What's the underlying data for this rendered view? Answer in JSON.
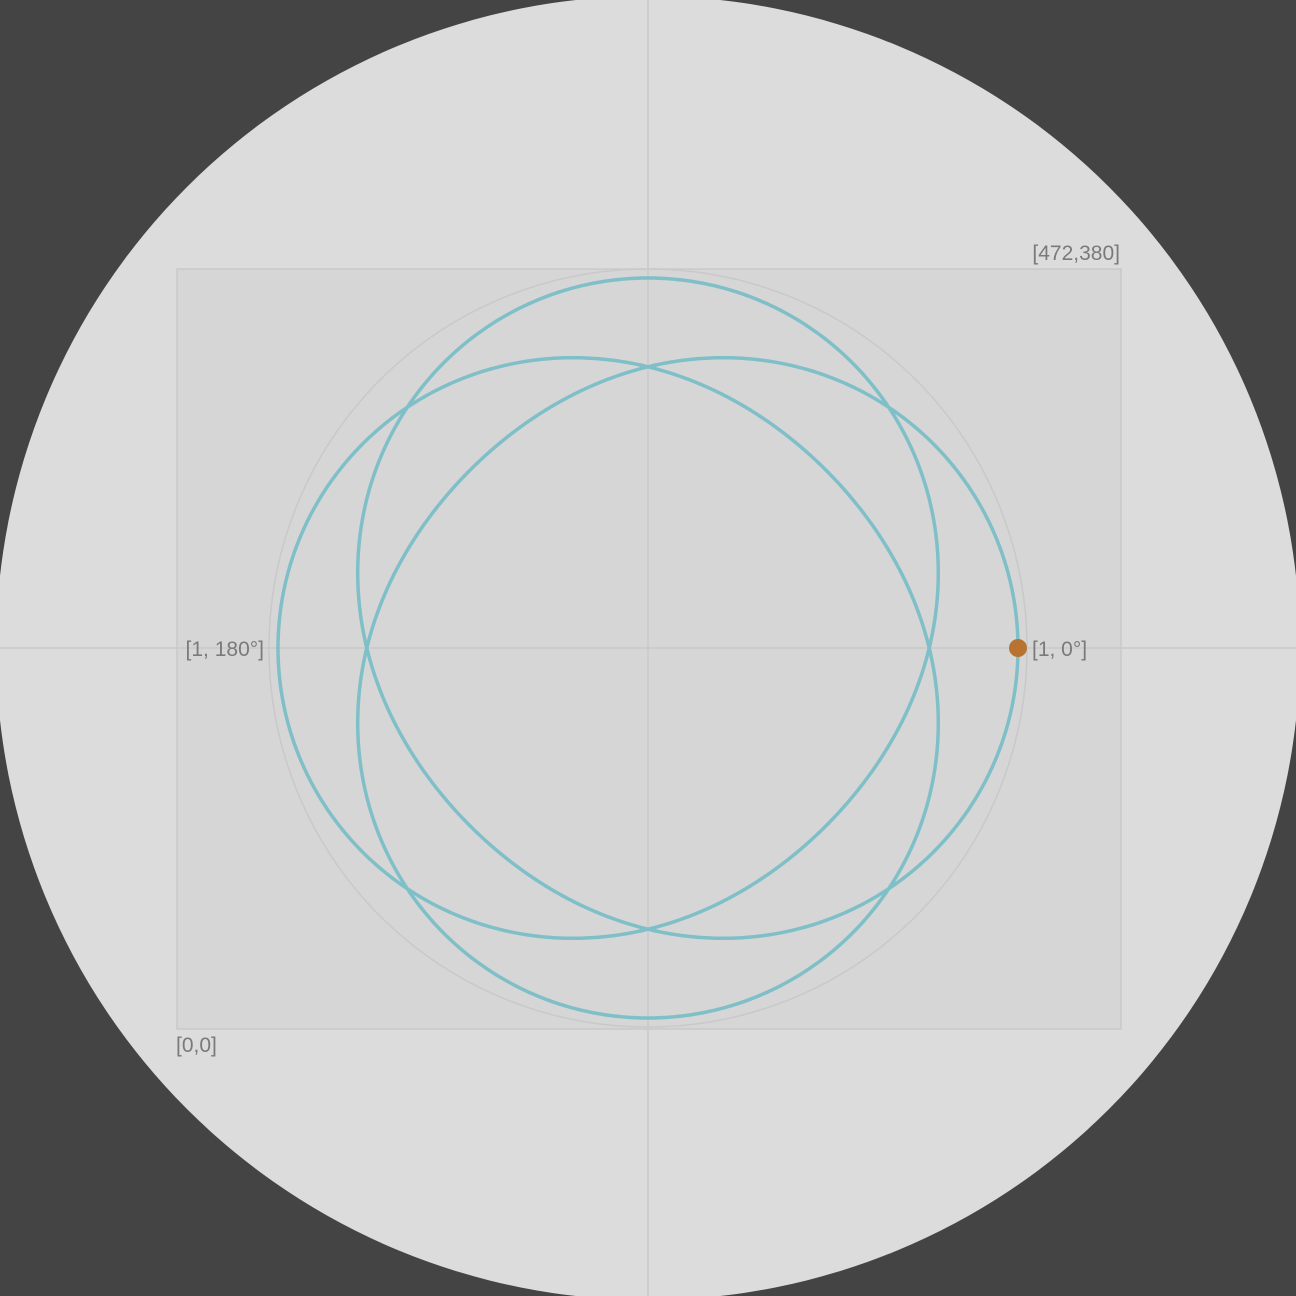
{
  "colors": {
    "page_background": "#444444",
    "disc": "#dcdcdc",
    "panel": "#d6d6d6",
    "axes": "#c9c9c9",
    "curve": "#7fbfc8",
    "marker": "#b87333",
    "label_text": "#7a7a7a"
  },
  "labels": {
    "top_right_corner": "[472,380]",
    "bottom_left_corner": "[0,0]",
    "angle_zero": "[1, 0°]",
    "angle_180": "[1, 180°]"
  },
  "curve": {
    "type": "rose",
    "equation_shown": false,
    "max_radius": 1,
    "min_radius": 0.68,
    "lobes": 4,
    "marker": {
      "r": 1,
      "theta_deg": 0
    }
  }
}
